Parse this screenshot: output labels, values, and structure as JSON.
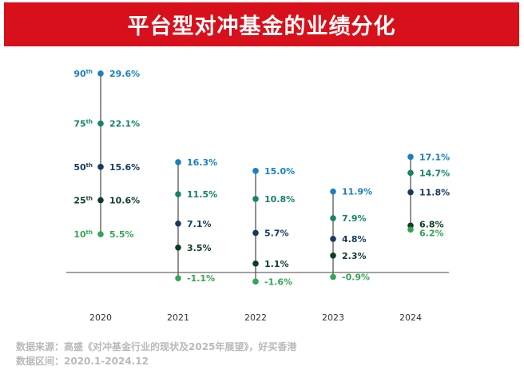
{
  "banner": {
    "title": "平台型对冲基金的业绩分化"
  },
  "colors": {
    "banner": "#d7101c",
    "p90": "#1a7fc0",
    "p75": "#158467",
    "p50": "#163a5e",
    "p25": "#0f3d23",
    "p10": "#33a554",
    "stem": "#555555",
    "baseline": "#444444",
    "source_text": "#b9b9b9"
  },
  "chart_data": {
    "type": "scatter",
    "title": "",
    "xlabel": "",
    "ylabel": "",
    "categories": [
      "2020",
      "2021",
      "2022",
      "2023",
      "2024"
    ],
    "ylim": [
      -2.5,
      30
    ],
    "baseline": 0,
    "grid": false,
    "percentile_labels": [
      {
        "num": "90",
        "sup": "th",
        "series": "p90"
      },
      {
        "num": "75",
        "sup": "th",
        "series": "p75"
      },
      {
        "num": "50",
        "sup": "th",
        "series": "p50"
      },
      {
        "num": "25",
        "sup": "th",
        "series": "p25"
      },
      {
        "num": "10",
        "sup": "th",
        "series": "p10"
      }
    ],
    "series": [
      {
        "key": "p90",
        "name": "90th",
        "values": [
          29.6,
          16.3,
          15.0,
          11.9,
          17.1
        ],
        "labels": [
          "29.6%",
          "16.3%",
          "15.0%",
          "11.9%",
          "17.1%"
        ]
      },
      {
        "key": "p75",
        "name": "75th",
        "values": [
          22.1,
          11.5,
          10.8,
          7.9,
          14.7
        ],
        "labels": [
          "22.1%",
          "11.5%",
          "10.8%",
          "7.9%",
          "14.7%"
        ]
      },
      {
        "key": "p50",
        "name": "50th",
        "values": [
          15.6,
          7.1,
          5.7,
          4.8,
          11.8
        ],
        "labels": [
          "15.6%",
          "7.1%",
          "5.7%",
          "4.8%",
          "11.8%"
        ]
      },
      {
        "key": "p25",
        "name": "25th",
        "values": [
          10.6,
          3.5,
          1.1,
          2.3,
          6.8
        ],
        "labels": [
          "10.6%",
          "3.5%",
          "1.1%",
          "2.3%",
          "6.8%"
        ]
      },
      {
        "key": "p10",
        "name": "10th",
        "values": [
          5.5,
          -1.1,
          -1.6,
          -0.9,
          6.2
        ],
        "labels": [
          "5.5%",
          "-1.1%",
          "-1.6%",
          "-0.9%",
          "6.2%"
        ]
      }
    ]
  },
  "footer": {
    "source": "数据来源：高盛《对冲基金行业的现状及2025年展望》，好买香港",
    "period": "数据区间：2020.1-2024.12"
  }
}
